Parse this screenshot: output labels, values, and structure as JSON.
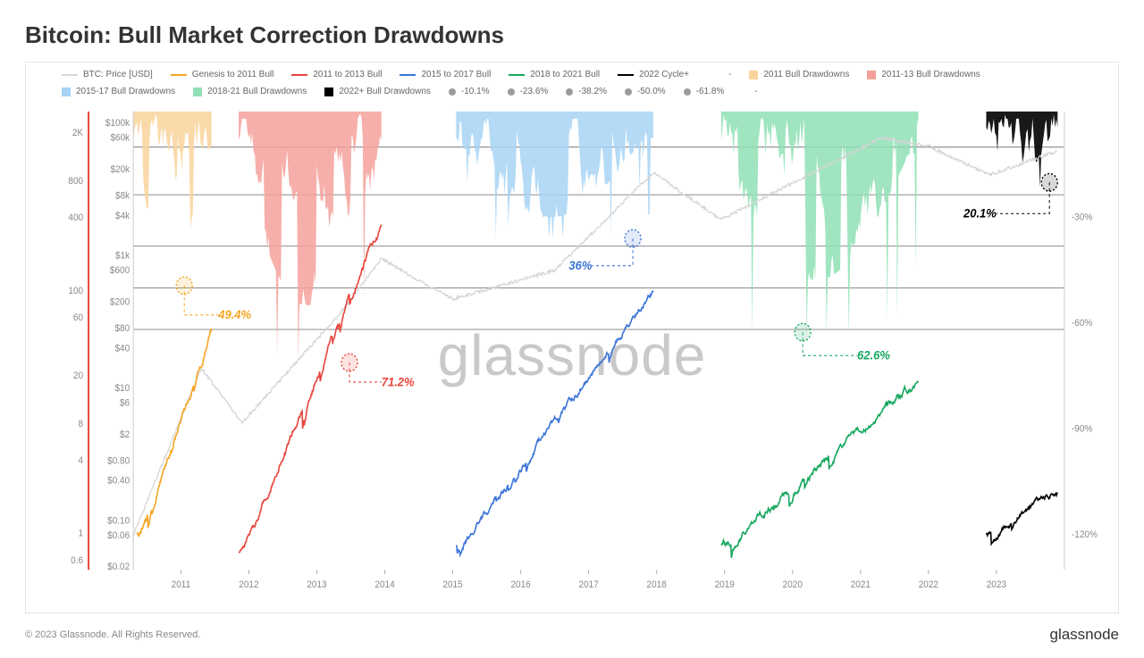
{
  "title": "Bitcoin: Bull Market Correction Drawdowns",
  "watermark": "glassnode",
  "copyright": "© 2023 Glassnode. All Rights Reserved.",
  "brand": "glassnode",
  "legend": {
    "row1": [
      {
        "kind": "line",
        "color": "#d9d9d9",
        "label": "BTC: Price [USD]"
      },
      {
        "kind": "line",
        "color": "#f5a623",
        "label": "Genesis to 2011 Bull"
      },
      {
        "kind": "line",
        "color": "#e8453c",
        "label": "2011 to 2013 Bull"
      },
      {
        "kind": "line",
        "color": "#3b74d8",
        "label": "2015 to 2017 Bull"
      },
      {
        "kind": "line",
        "color": "#17a85f",
        "label": "2018 to 2021 Bull"
      },
      {
        "kind": "line",
        "color": "#000000",
        "label": "2022 Cycle+"
      },
      {
        "kind": "line",
        "color": "#ffffff",
        "label": "-"
      },
      {
        "kind": "block",
        "color": "#f9d49b",
        "label": "2011 Bull Drawdowns"
      },
      {
        "kind": "block",
        "color": "#f4a19b",
        "label": "2011-13 Bull Drawdowns"
      }
    ],
    "row2": [
      {
        "kind": "block",
        "color": "#a7d3f4",
        "label": "2015-17 Bull Drawdowns"
      },
      {
        "kind": "block",
        "color": "#8fe0b5",
        "label": "2018-21 Bull Drawdowns"
      },
      {
        "kind": "block",
        "color": "#000000",
        "label": "2022+ Bull Drawdowns"
      },
      {
        "kind": "dot",
        "color": "#9b9b9b",
        "label": "-10.1%"
      },
      {
        "kind": "dot",
        "color": "#9b9b9b",
        "label": "-23.6%"
      },
      {
        "kind": "dot",
        "color": "#9b9b9b",
        "label": "-38.2%"
      },
      {
        "kind": "dot",
        "color": "#9b9b9b",
        "label": "-50.0%"
      },
      {
        "kind": "dot",
        "color": "#9b9b9b",
        "label": "-61.8%"
      },
      {
        "kind": "dot",
        "color": "#ffffff",
        "label": "-"
      }
    ]
  },
  "chart": {
    "background": "#ffffff",
    "grid_color": "#e8e8e8",
    "x": {
      "years": [
        "2011",
        "2012",
        "2013",
        "2014",
        "2015",
        "2016",
        "2017",
        "2018",
        "2019",
        "2020",
        "2021",
        "2022",
        "2023"
      ]
    },
    "yLeft1": {
      "ticks": [
        "0.6",
        "1",
        "4",
        "8",
        "20",
        "60",
        "100",
        "400",
        "800",
        "2K"
      ],
      "color": "#e8453c"
    },
    "yLeft2": {
      "ticks": [
        "$0.02",
        "$0.06",
        "$0.10",
        "$0.40",
        "$0.80",
        "$2",
        "$6",
        "$10",
        "$40",
        "$80",
        "$200",
        "$600",
        "$1k",
        "$4k",
        "$8k",
        "$20k",
        "$60k",
        "$100k"
      ],
      "color": "#888888"
    },
    "yRight": {
      "ticks": [
        "-120%",
        "-90%",
        "-60%",
        "-30%"
      ],
      "color": "#888888"
    },
    "hlines_pct": [
      -10.1,
      -23.6,
      -38.2,
      -50.0,
      -61.8
    ],
    "series": {
      "btc_price_grey": {
        "color": "#d4d4d4",
        "width": 1.2
      },
      "bull_2011_orange": {
        "color": "#f5a623",
        "width": 1.6
      },
      "bull_2013_red": {
        "color": "#e8453c",
        "width": 1.6
      },
      "bull_2017_blue": {
        "color": "#3b74d8",
        "width": 1.6
      },
      "bull_2021_green": {
        "color": "#17a85f",
        "width": 1.6
      },
      "bull_2022_black": {
        "color": "#000000",
        "width": 1.6
      }
    },
    "drawdowns": {
      "d2011": {
        "color": "#f9d49b",
        "opacity": 0.85
      },
      "d2013": {
        "color": "#f4a19b",
        "opacity": 0.85
      },
      "d2017": {
        "color": "#a7d3f4",
        "opacity": 0.85
      },
      "d2021": {
        "color": "#8fe0b5",
        "opacity": 0.85
      },
      "d2022": {
        "color": "#000000",
        "opacity": 0.9
      }
    },
    "callouts": [
      {
        "id": "c2011",
        "text": "49.4%",
        "color": "#f5a623"
      },
      {
        "id": "c2013",
        "text": "71.2%",
        "color": "#e8453c"
      },
      {
        "id": "c2017",
        "text": "36%",
        "color": "#3b74d8"
      },
      {
        "id": "c2021",
        "text": "62.6%",
        "color": "#17a85f"
      },
      {
        "id": "c2022",
        "text": "20.1%",
        "color": "#000000"
      }
    ]
  }
}
